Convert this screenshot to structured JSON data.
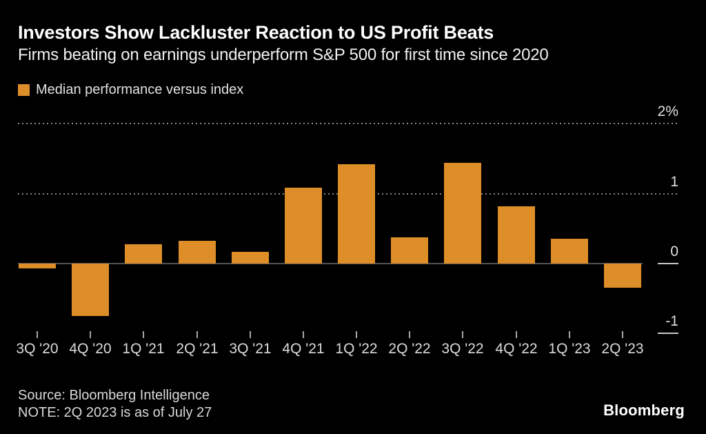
{
  "header": {
    "title": "Investors Show Lackluster Reaction to US Profit Beats",
    "subtitle": "Firms beating on earnings underperform S&P 500 for first time since 2020"
  },
  "legend": {
    "label": "Median performance versus index",
    "swatch_color": "#DE8E28"
  },
  "chart_data": {
    "type": "bar",
    "title": "Investors Show Lackluster Reaction to US Profit Beats",
    "subtitle": "Firms beating on earnings underperform S&P 500 for first time since 2020",
    "series_name": "Median performance versus index",
    "categories": [
      "3Q '20",
      "4Q '20",
      "1Q '21",
      "2Q '21",
      "3Q '21",
      "4Q '21",
      "1Q '22",
      "2Q '22",
      "3Q '22",
      "4Q '22",
      "1Q '23",
      "2Q '23"
    ],
    "values": [
      -0.07,
      -0.75,
      0.28,
      0.33,
      0.17,
      1.09,
      1.42,
      0.38,
      1.44,
      0.82,
      0.36,
      -0.35
    ],
    "unit": "%",
    "ylim": [
      -1.2,
      2.2
    ],
    "yticks": [
      {
        "value": 2,
        "label": "2%",
        "style": "dotted"
      },
      {
        "value": 1,
        "label": "1",
        "style": "dotted"
      },
      {
        "value": 0,
        "label": "0",
        "style": "zero"
      },
      {
        "value": -1,
        "label": "-1",
        "style": "tick"
      }
    ],
    "grid": "horizontal dotted",
    "legend_position": "top-left",
    "bar_color": "#DE8E28"
  },
  "footer": {
    "source": "Source: Bloomberg Intelligence",
    "note": "NOTE: 2Q 2023 is as of July 27",
    "logo": "Bloomberg"
  },
  "colors": {
    "background": "#000000",
    "bar": "#DE8E28",
    "title_text": "#FFFFFF",
    "axis_text": "#E0E0E0",
    "zero_line": "#525252",
    "gridline": "#8A8A8A"
  }
}
